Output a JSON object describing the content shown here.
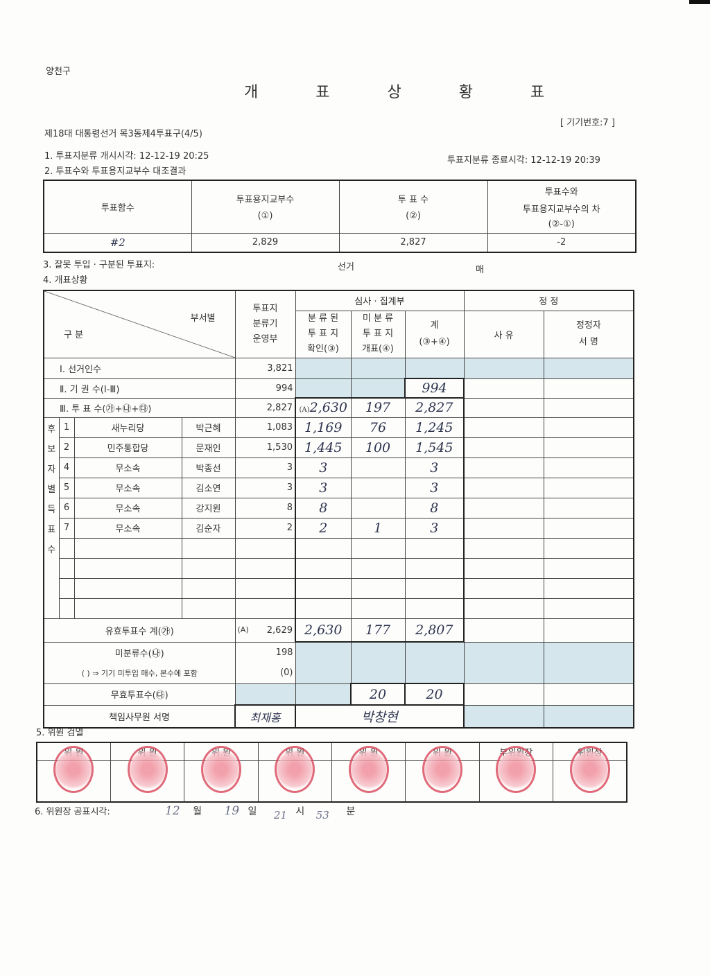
{
  "district": "양천구",
  "title": "개 표 상 황 표",
  "device_no": "[ 기기번호:7 ]",
  "election": "제18대 대통령선거 목3동제4투표구(4/5)",
  "s1_start": "1. 투표지분류 개시시각: 12-12-19 20:25",
  "s1_end": "투표지분류 종료시각: 12-12-19 20:39",
  "s2": "2. 투표수와 투표용지교부수 대조결과",
  "t1": {
    "h": [
      "투표함수",
      "투표용지교부수",
      "(①)",
      "투 표 수",
      "(②)",
      "투표수와",
      "투표용지교부수의 차",
      "(②-①)"
    ],
    "ballot_box": "#2",
    "issued": "2,829",
    "votes": "2,827",
    "diff": "-2"
  },
  "s3": "3. 잘못 투입 · 구분된 투표지:",
  "s3_election": "선거",
  "s3_unit": "매",
  "s4": "4. 개표상황",
  "t2": {
    "h_category": "구 분",
    "h_dept": "부서별",
    "h_sorter": [
      "투표지",
      "분류기",
      "운영부"
    ],
    "h_review": "심사 · 집계부",
    "h_sorted": [
      "분 류 된",
      "투 표 지",
      "확인(③)"
    ],
    "h_unsorted": [
      "미 분 류",
      "투 표 지",
      "개표(④)"
    ],
    "h_sum": [
      "계",
      "(③+④)"
    ],
    "h_correction": "정 정",
    "h_reason": "사 유",
    "h_signer": [
      "정정자",
      "서 명"
    ],
    "electors": {
      "label": "Ⅰ. 선거인수",
      "value": "3,821"
    },
    "abstain": {
      "label": "Ⅱ. 기 권 수(Ⅰ-Ⅲ)",
      "value": "994",
      "sum": "994"
    },
    "votes": {
      "label": "Ⅲ. 투 표 수(㉮+㉯+㉰)",
      "value": "2,827",
      "mark": "(A)",
      "sorted": "2,630",
      "unsorted": "197",
      "sum": "2,827"
    },
    "candidates_label": "후보자별득표수",
    "candidates": [
      {
        "no": "1",
        "party": "새누리당",
        "name": "박근혜",
        "sorter": "1,083",
        "sorted": "1,169",
        "unsorted": "76",
        "sum": "1,245"
      },
      {
        "no": "2",
        "party": "민주통합당",
        "name": "문재인",
        "sorter": "1,530",
        "sorted": "1,445",
        "unsorted": "100",
        "sum": "1,545"
      },
      {
        "no": "4",
        "party": "무소속",
        "name": "박종선",
        "sorter": "3",
        "sorted": "3",
        "unsorted": "",
        "sum": "3"
      },
      {
        "no": "5",
        "party": "무소속",
        "name": "김소연",
        "sorter": "3",
        "sorted": "3",
        "unsorted": "",
        "sum": "3"
      },
      {
        "no": "6",
        "party": "무소속",
        "name": "강지원",
        "sorter": "8",
        "sorted": "8",
        "unsorted": "",
        "sum": "8"
      },
      {
        "no": "7",
        "party": "무소속",
        "name": "김순자",
        "sorter": "2",
        "sorted": "2",
        "unsorted": "1",
        "sum": "3"
      }
    ],
    "valid": {
      "label": "유효투표수 계(㉮)",
      "mark": "(A)",
      "value": "2,629",
      "sorted": "2,630",
      "unsorted": "177",
      "sum": "2,807"
    },
    "unsorted": {
      "label": "미분류수(㉯)",
      "value": "198",
      "note": "( ) ⇒ 기기 미투입 매수, 본수에 포함",
      "note_value": "(0)"
    },
    "invalid": {
      "label": "무효투표수(㉰)",
      "unsorted": "20",
      "sum": "20"
    },
    "officer": {
      "label": "책임사무원 서명",
      "sig1": "최재홍",
      "sig2": "박창현"
    }
  },
  "s5": "5. 위원 검열",
  "committee": [
    "위 원",
    "위 원",
    "위 원",
    "위 원",
    "위 원",
    "위 원",
    "부위원장",
    "위원장"
  ],
  "s6": "6. 위원장 공표시각:",
  "announce": {
    "month": "12",
    "month_unit": "월",
    "day": "19",
    "day_unit": "일",
    "hour": "21",
    "hour_unit": "시",
    "minute": "53",
    "minute_unit": "분"
  },
  "colors": {
    "shade": "#d5e6ec",
    "stamp": "#d9465a",
    "ink": "#2f3550"
  }
}
